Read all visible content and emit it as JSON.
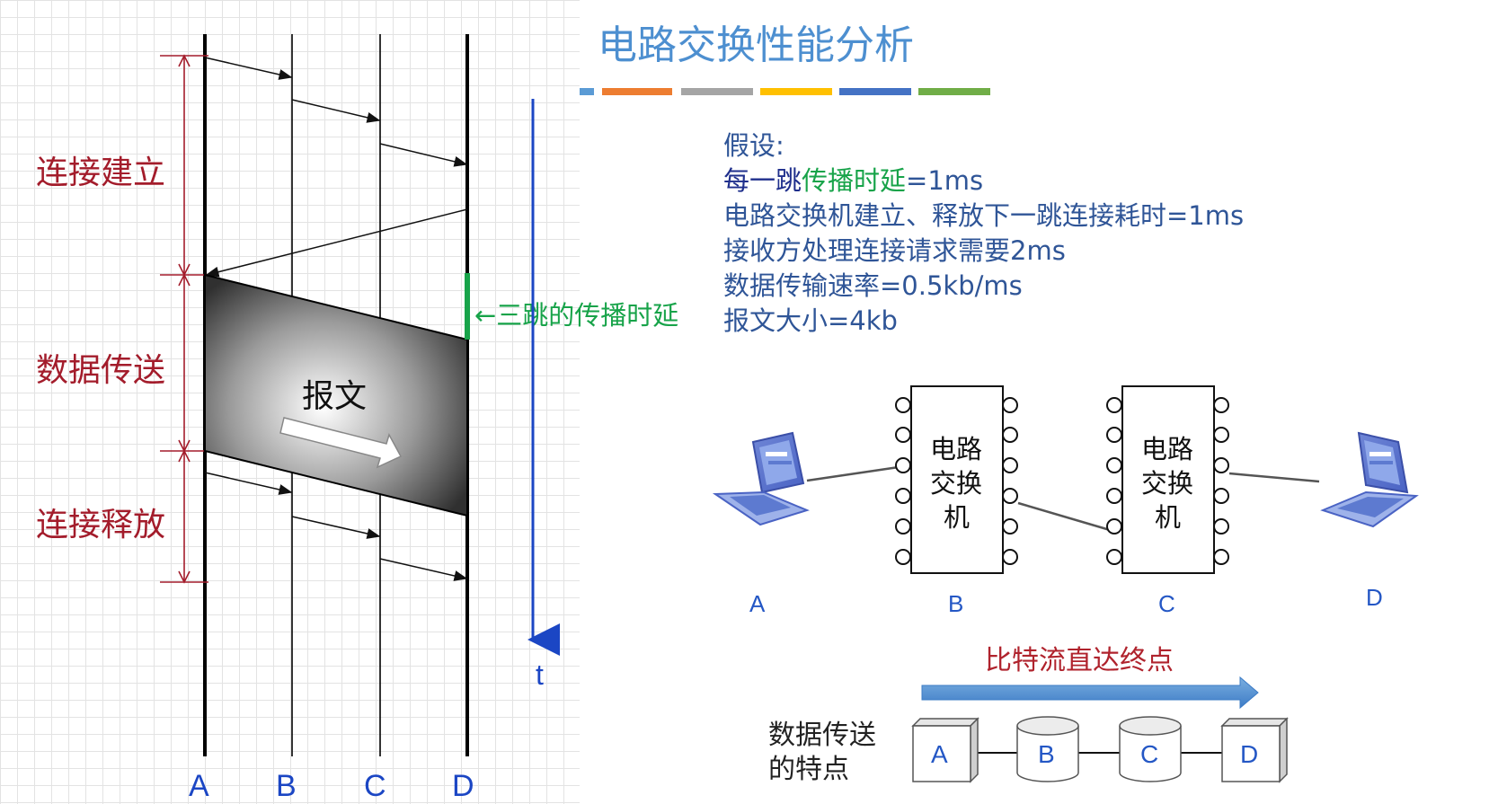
{
  "title": "电路交换性能分析",
  "accent_bar_colors": [
    "#5b9bd5",
    "#ed7d31",
    "#a5a5a5",
    "#ffc000",
    "#4472c4",
    "#70ad47"
  ],
  "timeline": {
    "phases": [
      "连接建立",
      "数据传送",
      "连接释放"
    ],
    "columns": [
      "A",
      "B",
      "C",
      "D"
    ],
    "time_axis": "t",
    "message": "报文",
    "propagation_note": "←三跳的传播时延"
  },
  "assumptions": {
    "heading": "假设:",
    "line1_part1": "每一跳",
    "line1_part2": "传播时延",
    "line1_part3": "=1ms",
    "line2": "电路交换机建立、释放下一跳连接耗时=1ms",
    "line3": "接收方处理连接请求需要2ms",
    "line4": "数据传输速率=0.5kb/ms",
    "line5": "报文大小=4kb"
  },
  "network": {
    "switch_text": [
      "电路",
      "交换",
      "机"
    ],
    "labels": [
      "A",
      "B",
      "C",
      "D"
    ]
  },
  "feature": {
    "bitflow": "比特流直达终点",
    "title_line1": "数据传送",
    "title_line2": "的特点",
    "nodes": [
      "A",
      "B",
      "C",
      "D"
    ]
  }
}
